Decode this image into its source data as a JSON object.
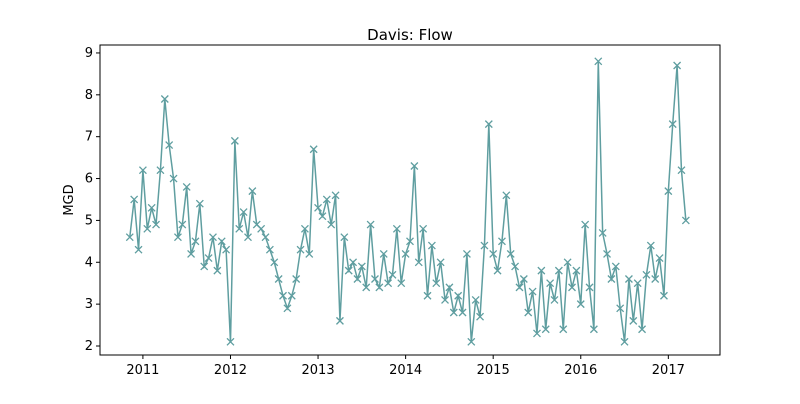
{
  "chart_data": {
    "type": "line",
    "title": "Davis: Flow",
    "y_label": "MGD",
    "marker": "x",
    "x": [
      2010.85,
      2010.9,
      2010.95,
      2011,
      2011.05,
      2011.1,
      2011.15,
      2011.2,
      2011.25,
      2011.3,
      2011.35,
      2011.4,
      2011.45,
      2011.5,
      2011.55,
      2011.6,
      2011.65,
      2011.7,
      2011.75,
      2011.8,
      2011.85,
      2011.9,
      2011.95,
      2012,
      2012.05,
      2012.1,
      2012.15,
      2012.2,
      2012.25,
      2012.3,
      2012.35,
      2012.4,
      2012.45,
      2012.5,
      2012.55,
      2012.6,
      2012.65,
      2012.7,
      2012.75,
      2012.8,
      2012.85,
      2012.9,
      2012.95,
      2013,
      2013.05,
      2013.1,
      2013.15,
      2013.2,
      2013.25,
      2013.3,
      2013.35,
      2013.4,
      2013.45,
      2013.5,
      2013.55,
      2013.6,
      2013.65,
      2013.7,
      2013.75,
      2013.8,
      2013.85,
      2013.9,
      2013.95,
      2014,
      2014.05,
      2014.1,
      2014.15,
      2014.2,
      2014.25,
      2014.3,
      2014.35,
      2014.4,
      2014.45,
      2014.5,
      2014.55,
      2014.6,
      2014.65,
      2014.7,
      2014.75,
      2014.8,
      2014.85,
      2014.9,
      2014.95,
      2015,
      2015.05,
      2015.1,
      2015.15,
      2015.2,
      2015.25,
      2015.3,
      2015.35,
      2015.4,
      2015.45,
      2015.5,
      2015.55,
      2015.6,
      2015.65,
      2015.7,
      2015.75,
      2015.8,
      2015.85,
      2015.9,
      2015.95,
      2016,
      2016.05,
      2016.1,
      2016.15,
      2016.2,
      2016.25,
      2016.3,
      2016.35,
      2016.4,
      2016.45,
      2016.5,
      2016.55,
      2016.6,
      2016.65,
      2016.7,
      2016.75,
      2016.8,
      2016.85,
      2016.9,
      2016.95,
      2017,
      2017.05,
      2017.1,
      2017.15,
      2017.2
    ],
    "series": [
      {
        "color": "#5f9ea0",
        "values": [
          4.6,
          5.5,
          4.3,
          6.2,
          4.8,
          5.3,
          4.9,
          6.2,
          7.9,
          6.8,
          6.0,
          4.6,
          4.9,
          5.8,
          4.2,
          4.5,
          5.4,
          3.9,
          4.1,
          4.6,
          3.8,
          4.5,
          4.3,
          2.1,
          6.9,
          4.8,
          5.2,
          4.6,
          5.7,
          4.9,
          4.8,
          4.6,
          4.3,
          4.0,
          3.6,
          3.2,
          2.9,
          3.2,
          3.6,
          4.3,
          4.8,
          4.2,
          6.7,
          5.3,
          5.1,
          5.5,
          4.9,
          5.6,
          2.6,
          4.6,
          3.8,
          4.0,
          3.6,
          3.9,
          3.4,
          4.9,
          3.6,
          3.4,
          4.2,
          3.5,
          3.7,
          4.8,
          3.5,
          4.2,
          4.5,
          6.3,
          4.0,
          4.8,
          3.2,
          4.4,
          3.5,
          4.0,
          3.1,
          3.4,
          2.8,
          3.2,
          2.8,
          4.2,
          2.1,
          3.1,
          2.7,
          4.4,
          7.3,
          4.2,
          3.8,
          4.5,
          5.6,
          4.2,
          3.9,
          3.4,
          3.6,
          2.8,
          3.3,
          2.3,
          3.8,
          2.4,
          3.5,
          3.1,
          3.8,
          2.4,
          4.0,
          3.4,
          3.8,
          3.0,
          4.9,
          3.4,
          2.4,
          8.8,
          4.7,
          4.2,
          3.6,
          3.9,
          2.9,
          2.1,
          3.6,
          2.6,
          3.5,
          2.4,
          3.7,
          4.4,
          3.6,
          4.1,
          3.2,
          5.7,
          7.3,
          8.7,
          6.2,
          5.0
        ]
      }
    ],
    "xlim": [
      2010.51,
      2017.59
    ],
    "xticks": [
      2011,
      2012,
      2013,
      2014,
      2015,
      2016,
      2017
    ],
    "ylim": [
      1.785,
      9.19
    ],
    "yticks": [
      2,
      3,
      4,
      5,
      6,
      7,
      8,
      9
    ]
  }
}
